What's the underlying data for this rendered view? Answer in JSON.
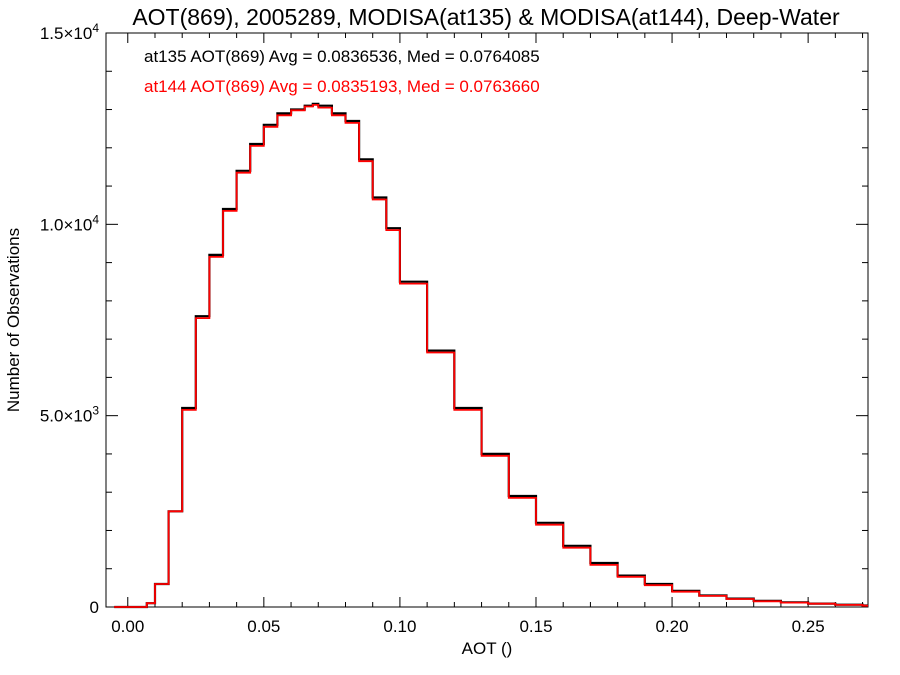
{
  "chart_data": {
    "type": "line",
    "title": "AOT(869), 2005289, MODISA(at135) & MODISA(at144), Deep-Water",
    "xlabel": "AOT ()",
    "ylabel": "Number of Observations",
    "xlim": [
      -0.008,
      0.272
    ],
    "ylim": [
      0,
      15000
    ],
    "x_ticks": [
      {
        "value": 0.0,
        "label": "0.00"
      },
      {
        "value": 0.05,
        "label": "0.05"
      },
      {
        "value": 0.1,
        "label": "0.10"
      },
      {
        "value": 0.15,
        "label": "0.15"
      },
      {
        "value": 0.2,
        "label": "0.20"
      },
      {
        "value": 0.25,
        "label": "0.25"
      }
    ],
    "y_ticks": [
      {
        "value": 0,
        "mantissa": "0",
        "exponent": ""
      },
      {
        "value": 5000,
        "mantissa": "5.0×10",
        "exponent": "3"
      },
      {
        "value": 10000,
        "mantissa": "1.0×10",
        "exponent": "4"
      },
      {
        "value": 15000,
        "mantissa": "1.5×10",
        "exponent": "4"
      }
    ],
    "annotations": [
      {
        "text": "at135 AOT(869) Avg = 0.0836536, Med = 0.0764085",
        "color": "#000000"
      },
      {
        "text": "at144 AOT(869) Avg = 0.0835193, Med = 0.0763660",
        "color": "#ff0000"
      }
    ],
    "x": [
      -0.005,
      0.0,
      0.005,
      0.007,
      0.01,
      0.015,
      0.02,
      0.025,
      0.03,
      0.035,
      0.04,
      0.045,
      0.05,
      0.055,
      0.06,
      0.065,
      0.068,
      0.07,
      0.075,
      0.08,
      0.085,
      0.09,
      0.095,
      0.1,
      0.11,
      0.12,
      0.13,
      0.14,
      0.15,
      0.16,
      0.17,
      0.18,
      0.19,
      0.2,
      0.21,
      0.22,
      0.23,
      0.24,
      0.25,
      0.26,
      0.27
    ],
    "series": [
      {
        "name": "at135",
        "color": "#000000",
        "values": [
          0,
          0,
          0,
          100,
          600,
          2500,
          5200,
          7600,
          9200,
          10400,
          11400,
          12100,
          12600,
          12900,
          13000,
          13100,
          13150,
          13100,
          12900,
          12700,
          11700,
          10700,
          9900,
          8500,
          6700,
          5200,
          4000,
          2900,
          2200,
          1600,
          1150,
          820,
          600,
          420,
          300,
          220,
          160,
          120,
          90,
          60,
          40
        ]
      },
      {
        "name": "at144",
        "color": "#ff0000",
        "values": [
          0,
          0,
          0,
          100,
          600,
          2500,
          5150,
          7550,
          9150,
          10350,
          11350,
          12050,
          12550,
          12850,
          12980,
          13080,
          13120,
          13050,
          12850,
          12650,
          11650,
          10650,
          9850,
          8450,
          6650,
          5150,
          3950,
          2850,
          2150,
          1550,
          1100,
          790,
          570,
          400,
          290,
          210,
          150,
          115,
          85,
          55,
          35
        ]
      }
    ]
  }
}
